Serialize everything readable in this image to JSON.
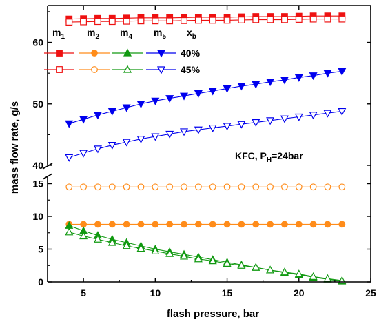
{
  "chart_data": {
    "type": "line",
    "xlabel": "flash pressure, bar",
    "ylabel": "mass flow rate, g/s",
    "x": [
      4,
      5,
      6,
      7,
      8,
      9,
      10,
      11,
      12,
      13,
      14,
      15,
      16,
      17,
      18,
      19,
      20,
      21,
      22,
      23
    ],
    "xlim": [
      2.5,
      25
    ],
    "x_ticks": [
      5,
      10,
      15,
      20,
      25
    ],
    "axis_break": true,
    "ylim_lower": [
      0,
      16
    ],
    "ylim_upper": [
      40,
      66
    ],
    "y_ticks_lower": [
      0,
      5,
      10,
      15
    ],
    "y_ticks_upper": [
      40,
      50,
      60
    ],
    "annotation": {
      "text_main": "KFC, P",
      "text_sub": "H",
      "text_tail": "=24bar"
    },
    "legend": {
      "headers": [
        {
          "main": "m",
          "sub": "1"
        },
        {
          "main": "m",
          "sub": "2"
        },
        {
          "main": "m",
          "sub": "4"
        },
        {
          "main": "m",
          "sub": "5"
        },
        {
          "main": "x",
          "sub": "b"
        }
      ],
      "rows": [
        {
          "label": "40%",
          "filled": true
        },
        {
          "label": "45%",
          "filled": false
        }
      ]
    },
    "colors": {
      "m1": "#ee1111",
      "m2": "#ff8c1a",
      "m4": "#119911",
      "m5": "#0000ee"
    },
    "series": [
      {
        "key": "m1",
        "xb": "40%",
        "marker": "square",
        "filled": true,
        "values": [
          63.8,
          63.85,
          63.9,
          63.9,
          63.95,
          64.0,
          64.0,
          64.0,
          64.05,
          64.1,
          64.1,
          64.1,
          64.15,
          64.2,
          64.2,
          64.2,
          64.25,
          64.3,
          64.3,
          64.3
        ]
      },
      {
        "key": "m1",
        "xb": "45%",
        "marker": "square",
        "filled": false,
        "values": [
          63.3,
          63.35,
          63.4,
          63.4,
          63.45,
          63.5,
          63.5,
          63.5,
          63.55,
          63.6,
          63.6,
          63.6,
          63.65,
          63.7,
          63.7,
          63.7,
          63.75,
          63.8,
          63.8,
          63.8
        ]
      },
      {
        "key": "m5",
        "xb": "40%",
        "marker": "triangle-down",
        "filled": true,
        "values": [
          46.8,
          47.5,
          48.2,
          48.8,
          49.4,
          50.0,
          50.5,
          50.9,
          51.3,
          51.7,
          52.1,
          52.5,
          52.9,
          53.2,
          53.6,
          53.9,
          54.3,
          54.6,
          55.0,
          55.3
        ]
      },
      {
        "key": "m5",
        "xb": "45%",
        "marker": "triangle-down",
        "filled": false,
        "values": [
          41.3,
          42.0,
          42.7,
          43.3,
          43.8,
          44.3,
          44.7,
          45.1,
          45.5,
          45.8,
          46.1,
          46.4,
          46.7,
          47.0,
          47.3,
          47.6,
          47.9,
          48.2,
          48.5,
          48.8
        ]
      },
      {
        "key": "m2",
        "xb": "40%",
        "marker": "circle",
        "filled": true,
        "values": [
          8.8,
          8.8,
          8.8,
          8.8,
          8.8,
          8.8,
          8.8,
          8.8,
          8.8,
          8.8,
          8.8,
          8.8,
          8.8,
          8.8,
          8.8,
          8.8,
          8.8,
          8.8,
          8.8,
          8.8
        ]
      },
      {
        "key": "m2",
        "xb": "45%",
        "marker": "circle",
        "filled": false,
        "values": [
          14.5,
          14.5,
          14.5,
          14.5,
          14.5,
          14.5,
          14.5,
          14.5,
          14.5,
          14.5,
          14.5,
          14.5,
          14.5,
          14.5,
          14.5,
          14.5,
          14.5,
          14.5,
          14.5,
          14.5
        ]
      },
      {
        "key": "m4",
        "xb": "40%",
        "marker": "triangle-up",
        "filled": true,
        "values": [
          8.6,
          7.8,
          7.1,
          6.5,
          6.0,
          5.5,
          5.0,
          4.6,
          4.2,
          3.8,
          3.4,
          3.0,
          2.6,
          2.2,
          1.8,
          1.4,
          1.1,
          0.7,
          0.4,
          0.1
        ]
      },
      {
        "key": "m4",
        "xb": "45%",
        "marker": "triangle-up",
        "filled": false,
        "values": [
          7.6,
          7.0,
          6.5,
          6.0,
          5.5,
          5.1,
          4.7,
          4.3,
          3.9,
          3.5,
          3.2,
          2.8,
          2.5,
          2.2,
          1.8,
          1.5,
          1.2,
          0.8,
          0.5,
          0.2
        ]
      }
    ]
  }
}
